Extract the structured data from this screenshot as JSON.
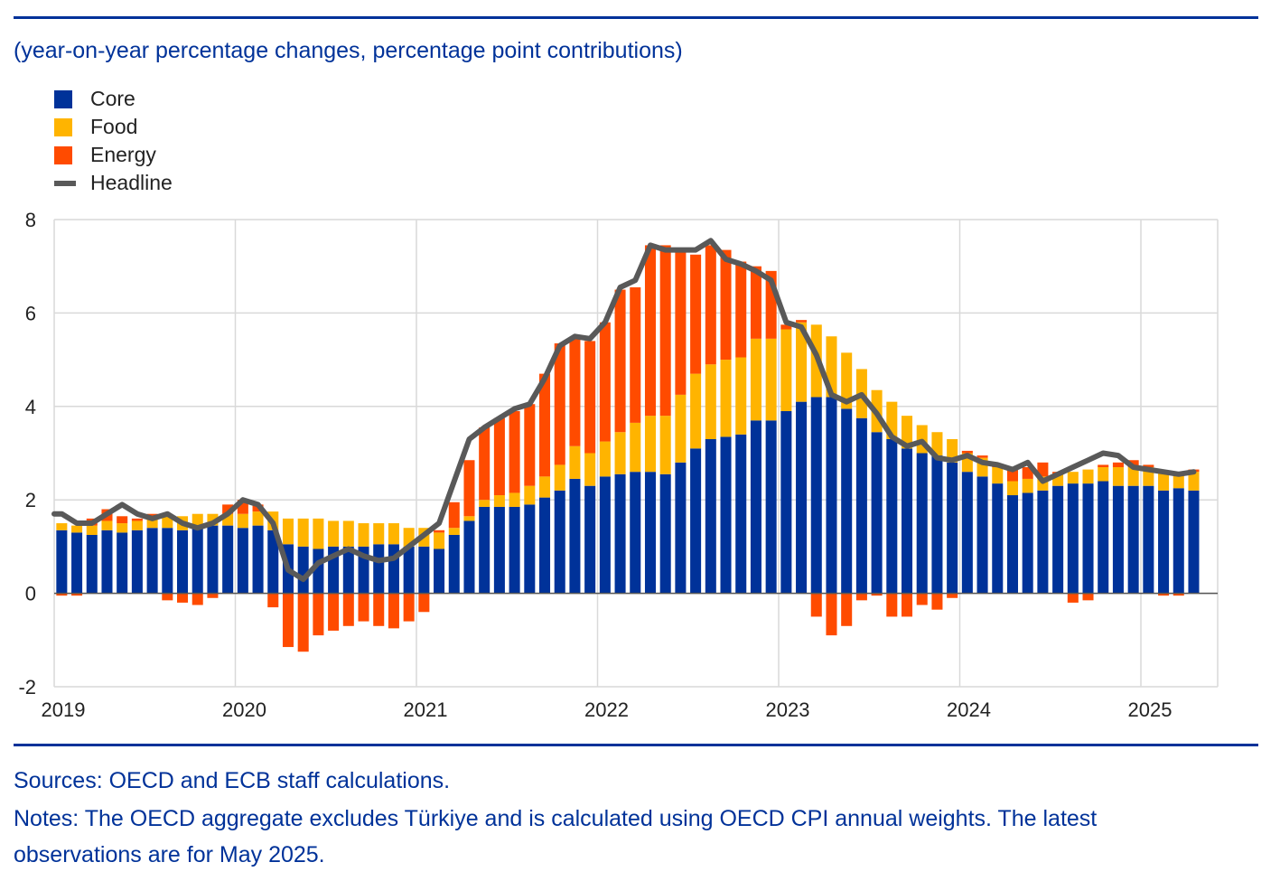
{
  "subtitle": "(year-on-year percentage changes, percentage point contributions)",
  "colors": {
    "core": "#003299",
    "food": "#FFB400",
    "energy": "#FF4B00",
    "headline": "#595959",
    "accent": "#003299"
  },
  "legend": [
    {
      "key": "core",
      "label": "Core"
    },
    {
      "key": "food",
      "label": "Food"
    },
    {
      "key": "energy",
      "label": "Energy"
    },
    {
      "key": "headline",
      "label": "Headline"
    }
  ],
  "chart_data": {
    "type": "bar",
    "stacked": true,
    "title": "",
    "xlabel": "",
    "ylabel": "",
    "ylim": [
      -2,
      8
    ],
    "yticks": [
      "8",
      "6",
      "4",
      "2",
      "0",
      "-2"
    ],
    "ytick_values": [
      8,
      6,
      4,
      2,
      0,
      -2
    ],
    "xticks": [
      "2019",
      "2020",
      "2021",
      "2022",
      "2023",
      "2024",
      "2025"
    ],
    "start": "2019-01",
    "end": "2025-05",
    "series": [
      {
        "name": "Core",
        "key": "core",
        "values": [
          1.35,
          1.3,
          1.25,
          1.35,
          1.3,
          1.35,
          1.4,
          1.4,
          1.35,
          1.4,
          1.45,
          1.45,
          1.4,
          1.45,
          1.35,
          1.05,
          1.0,
          0.95,
          1.0,
          1.0,
          1.0,
          1.05,
          1.05,
          1.0,
          1.0,
          0.95,
          1.25,
          1.55,
          1.85,
          1.85,
          1.85,
          1.9,
          2.05,
          2.2,
          2.45,
          2.3,
          2.5,
          2.55,
          2.6,
          2.6,
          2.55,
          2.8,
          3.1,
          3.3,
          3.35,
          3.4,
          3.7,
          3.7,
          3.9,
          4.1,
          4.2,
          4.2,
          3.95,
          3.75,
          3.45,
          3.3,
          3.1,
          3.0,
          2.95,
          2.8,
          2.6,
          2.5,
          2.35,
          2.1,
          2.15,
          2.2,
          2.3,
          2.35,
          2.35,
          2.4,
          2.3,
          2.3,
          2.3,
          2.2,
          2.25,
          2.2
        ]
      },
      {
        "name": "Food",
        "key": "food",
        "values": [
          0.15,
          0.15,
          0.2,
          0.2,
          0.2,
          0.2,
          0.25,
          0.25,
          0.3,
          0.3,
          0.25,
          0.25,
          0.3,
          0.3,
          0.4,
          0.55,
          0.6,
          0.65,
          0.55,
          0.55,
          0.5,
          0.45,
          0.45,
          0.4,
          0.4,
          0.35,
          0.15,
          0.1,
          0.15,
          0.25,
          0.3,
          0.4,
          0.45,
          0.55,
          0.7,
          0.7,
          0.75,
          0.9,
          1.05,
          1.2,
          1.25,
          1.45,
          1.6,
          1.6,
          1.65,
          1.65,
          1.75,
          1.75,
          1.75,
          1.7,
          1.55,
          1.3,
          1.2,
          1.05,
          0.9,
          0.8,
          0.7,
          0.6,
          0.5,
          0.5,
          0.4,
          0.4,
          0.35,
          0.3,
          0.3,
          0.3,
          0.25,
          0.25,
          0.3,
          0.3,
          0.4,
          0.4,
          0.4,
          0.4,
          0.35,
          0.4
        ]
      },
      {
        "name": "Energy",
        "key": "energy",
        "values": [
          -0.05,
          -0.05,
          0.15,
          0.25,
          0.15,
          0.05,
          0.05,
          -0.15,
          -0.2,
          -0.25,
          -0.1,
          0.2,
          0.3,
          0.15,
          -0.3,
          -1.15,
          -1.25,
          -0.9,
          -0.8,
          -0.7,
          -0.6,
          -0.7,
          -0.75,
          -0.6,
          -0.4,
          0.05,
          0.55,
          1.2,
          1.55,
          1.65,
          1.75,
          1.75,
          2.2,
          2.6,
          2.3,
          2.4,
          2.55,
          3.05,
          2.9,
          3.65,
          3.65,
          3.1,
          2.55,
          2.55,
          2.35,
          2.05,
          1.55,
          1.45,
          0.1,
          0.05,
          -0.5,
          -0.9,
          -0.7,
          -0.15,
          -0.05,
          -0.5,
          -0.5,
          -0.25,
          -0.35,
          -0.1,
          0.05,
          0.05,
          0.05,
          0.3,
          0.25,
          0.3,
          0.05,
          -0.2,
          -0.15,
          0.05,
          0.1,
          0.15,
          0.05,
          -0.05,
          -0.05,
          0.05
        ]
      },
      {
        "name": "Headline",
        "key": "headline",
        "type": "line",
        "values": [
          1.7,
          1.5,
          1.5,
          1.7,
          1.9,
          1.7,
          1.6,
          1.7,
          1.5,
          1.4,
          1.5,
          1.7,
          2.0,
          1.9,
          1.5,
          0.5,
          0.3,
          0.65,
          0.8,
          0.95,
          0.8,
          0.7,
          0.75,
          1.0,
          1.25,
          1.5,
          2.4,
          3.3,
          3.55,
          3.75,
          3.95,
          4.05,
          4.6,
          5.3,
          5.5,
          5.45,
          5.8,
          6.55,
          6.7,
          7.45,
          7.35,
          7.35,
          7.35,
          7.55,
          7.15,
          7.05,
          6.9,
          6.7,
          5.8,
          5.7,
          5.1,
          4.25,
          4.1,
          4.25,
          3.85,
          3.35,
          3.15,
          3.25,
          2.9,
          2.85,
          2.95,
          2.8,
          2.75,
          2.65,
          2.8,
          2.4,
          2.55,
          2.7,
          2.85,
          3.0,
          2.95,
          2.7,
          2.65,
          2.6,
          2.55,
          2.6
        ]
      }
    ]
  },
  "footer": {
    "sources": "Sources: OECD and ECB staff calculations.",
    "notes_line1": "Notes: The OECD aggregate excludes Türkiye and is calculated using OECD CPI annual weights. The latest",
    "notes_line2": "observations are for May 2025."
  }
}
